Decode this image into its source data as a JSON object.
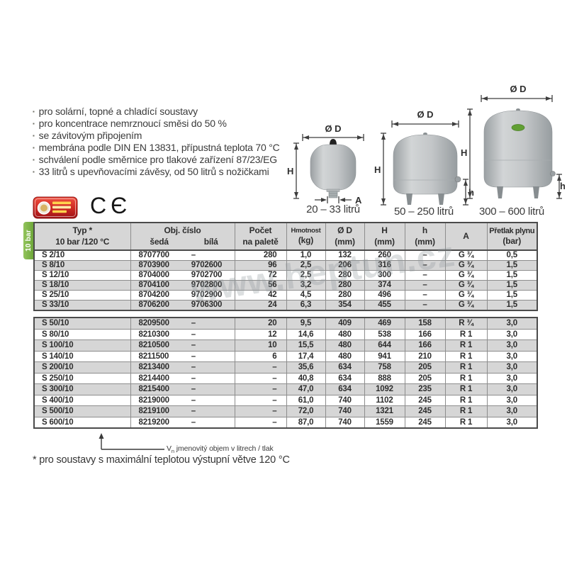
{
  "colors": {
    "accent_green": "#76ae3e",
    "logo_red": "#cf2a23",
    "table_zebra_gray": "#d6d6d6"
  },
  "bullets": [
    "pro solární, topné a chladící soustavy",
    "pro koncentrace nemrznoucí směsi do 50 %",
    "se závitovým připojením",
    "membrána podle DIN EN 13831, přípustná teplota 70 °C",
    "schválení podle směrnice pro tlakové zařízení 87/23/EG",
    "33 litrů s upevňovacími závěsy, od 50 litrů s nožičkami"
  ],
  "ce_mark": "CЄ",
  "dim_labels": {
    "d": "Ø D",
    "H": "H",
    "h": "h",
    "a": "A"
  },
  "diagrams": [
    {
      "caption": "20 – 33 litrů"
    },
    {
      "caption": "50 – 250 litrů"
    },
    {
      "caption": "300 – 600 litrů"
    }
  ],
  "watermark": "www.heptun.cz",
  "table": {
    "tab_label": "10 bar",
    "columns": [
      {
        "line1": "Typ *",
        "line2": "10 bar /120 °C"
      },
      {
        "line1": "Obj. číslo",
        "sub1": "šedá",
        "sub2": "bílá"
      },
      {
        "line1": "Počet",
        "line2": "na paletě"
      },
      {
        "line1": "Hmotnost",
        "line2": "(kg)"
      },
      {
        "line1": "Ø D",
        "line2": "(mm)"
      },
      {
        "line1": "H",
        "line2": "(mm)"
      },
      {
        "line1": "h",
        "line2": "(mm)"
      },
      {
        "line1": "A",
        "line2": ""
      },
      {
        "line1": "Přetlak plynu",
        "line2": "(bar)"
      }
    ],
    "blocks": [
      {
        "rows": [
          [
            "S 2/10",
            "8707700",
            "–",
            "280",
            "1,0",
            "132",
            "260",
            "–",
            "G ¾",
            "0,5"
          ],
          [
            "S 8/10",
            "8703900",
            "9702600",
            "96",
            "2,5",
            "206",
            "316",
            "–",
            "G ¾",
            "1,5"
          ],
          [
            "S 12/10",
            "8704000",
            "9702700",
            "72",
            "2,5",
            "280",
            "300",
            "–",
            "G ¾",
            "1,5"
          ],
          [
            "S 18/10",
            "8704100",
            "9702800",
            "56",
            "3,2",
            "280",
            "374",
            "–",
            "G ¾",
            "1,5"
          ],
          [
            "S 25/10",
            "8704200",
            "9702900",
            "42",
            "4,5",
            "280",
            "496",
            "–",
            "G ¾",
            "1,5"
          ],
          [
            "S 33/10",
            "8706200",
            "9706300",
            "24",
            "6,3",
            "354",
            "455",
            "–",
            "G ¾",
            "1,5"
          ]
        ]
      },
      {
        "rows": [
          [
            "S 50/10",
            "8209500",
            "–",
            "20",
            "9,5",
            "409",
            "469",
            "158",
            "R ¾",
            "3,0"
          ],
          [
            "S 80/10",
            "8210300",
            "–",
            "12",
            "14,6",
            "480",
            "538",
            "166",
            "R 1",
            "3,0"
          ],
          [
            "S 100/10",
            "8210500",
            "–",
            "10",
            "15,5",
            "480",
            "644",
            "166",
            "R 1",
            "3,0"
          ],
          [
            "S 140/10",
            "8211500",
            "–",
            "6",
            "17,4",
            "480",
            "941",
            "210",
            "R 1",
            "3,0"
          ],
          [
            "S 200/10",
            "8213400",
            "–",
            "–",
            "35,6",
            "634",
            "758",
            "205",
            "R 1",
            "3,0"
          ],
          [
            "S 250/10",
            "8214400",
            "–",
            "–",
            "40,8",
            "634",
            "888",
            "205",
            "R 1",
            "3,0"
          ],
          [
            "S 300/10",
            "8215400",
            "–",
            "–",
            "47,0",
            "634",
            "1092",
            "235",
            "R 1",
            "3,0"
          ],
          [
            "S 400/10",
            "8219000",
            "–",
            "–",
            "61,0",
            "740",
            "1102",
            "245",
            "R 1",
            "3,0"
          ],
          [
            "S 500/10",
            "8219100",
            "–",
            "–",
            "72,0",
            "740",
            "1321",
            "245",
            "R 1",
            "3,0"
          ],
          [
            "S 600/10",
            "8219200",
            "–",
            "–",
            "87,0",
            "740",
            "1559",
            "245",
            "R 1",
            "3,0"
          ]
        ]
      }
    ]
  },
  "footnotes": {
    "legend_v": "V",
    "legend_sub": "n",
    "legend_rest": " jmenovitý objem v litrech / tlak",
    "note": "* pro soustavy s maximální teplotou výstupní větve 120 °C"
  }
}
